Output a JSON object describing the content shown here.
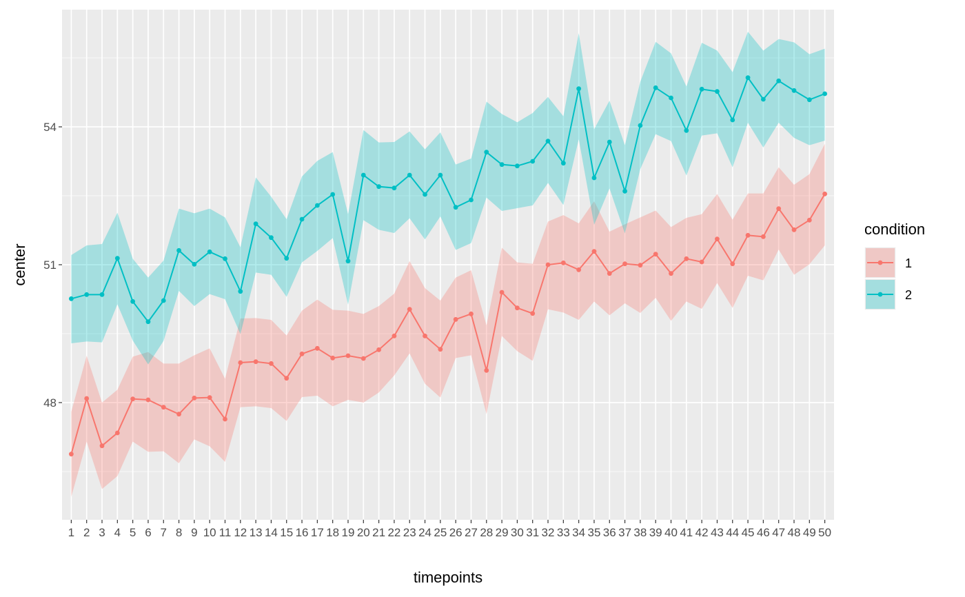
{
  "chart_data": {
    "type": "line",
    "title": "",
    "xlabel": "timepoints",
    "ylabel": "center",
    "x": [
      1,
      2,
      3,
      4,
      5,
      6,
      7,
      8,
      9,
      10,
      11,
      12,
      13,
      14,
      15,
      16,
      17,
      18,
      19,
      20,
      21,
      22,
      23,
      24,
      25,
      26,
      27,
      28,
      29,
      30,
      31,
      32,
      33,
      34,
      35,
      36,
      37,
      38,
      39,
      40,
      41,
      42,
      43,
      44,
      45,
      46,
      47,
      48,
      49,
      50
    ],
    "x_tick_labels": [
      "1",
      "2",
      "3",
      "4",
      "5",
      "6",
      "7",
      "8",
      "9",
      "10",
      "11",
      "12",
      "13",
      "14",
      "15",
      "16",
      "17",
      "18",
      "19",
      "20",
      "21",
      "22",
      "23",
      "24",
      "25",
      "26",
      "27",
      "28",
      "29",
      "30",
      "31",
      "32",
      "33",
      "34",
      "35",
      "36",
      "37",
      "38",
      "39",
      "40",
      "41",
      "42",
      "43",
      "44",
      "45",
      "46",
      "47",
      "48",
      "49",
      "50"
    ],
    "ylim": [
      45.45,
      56.55
    ],
    "y_ticks": [
      48,
      51,
      54
    ],
    "y_tick_labels": [
      "48",
      "51",
      "54"
    ],
    "grid": true,
    "legend": {
      "title": "condition",
      "position": "right"
    },
    "series": [
      {
        "name": "1",
        "color": "#F8766D",
        "fill": "#F8766D",
        "values": [
          46.88,
          48.09,
          47.06,
          47.34,
          48.08,
          48.06,
          47.9,
          47.75,
          48.1,
          48.11,
          47.64,
          48.87,
          48.89,
          48.85,
          48.53,
          49.06,
          49.18,
          48.97,
          49.02,
          48.96,
          49.15,
          49.45,
          50.03,
          49.45,
          49.16,
          49.81,
          49.93,
          48.7,
          50.4,
          50.06,
          49.94,
          51.0,
          51.04,
          50.89,
          51.29,
          50.81,
          51.02,
          50.99,
          51.23,
          50.81,
          51.13,
          51.06,
          51.56,
          51.02,
          51.64,
          51.61,
          52.22,
          51.76,
          51.97,
          52.54
        ],
        "lower": [
          45.95,
          47.15,
          46.12,
          46.4,
          47.15,
          46.93,
          46.94,
          46.68,
          47.2,
          47.05,
          46.71,
          47.9,
          47.92,
          47.88,
          47.6,
          48.12,
          48.15,
          47.92,
          48.06,
          48.0,
          48.22,
          48.59,
          49.07,
          48.41,
          48.11,
          48.97,
          49.03,
          47.75,
          49.45,
          49.12,
          48.91,
          50.03,
          49.96,
          49.8,
          50.2,
          49.9,
          50.16,
          49.95,
          50.28,
          49.78,
          50.2,
          50.04,
          50.6,
          50.06,
          50.76,
          50.66,
          51.33,
          50.78,
          51.01,
          51.42
        ],
        "upper": [
          47.8,
          49.02,
          48.0,
          48.28,
          49.0,
          49.1,
          48.85,
          48.85,
          49.03,
          49.18,
          48.52,
          49.83,
          49.84,
          49.8,
          49.46,
          50.0,
          50.24,
          50.02,
          50.0,
          49.93,
          50.1,
          50.37,
          51.08,
          50.49,
          50.22,
          50.72,
          50.88,
          49.68,
          51.37,
          51.05,
          51.02,
          51.94,
          52.08,
          51.9,
          52.38,
          51.72,
          51.88,
          52.03,
          52.18,
          51.82,
          52.02,
          52.1,
          52.54,
          51.98,
          52.55,
          52.55,
          53.12,
          52.74,
          52.97,
          53.63
        ]
      },
      {
        "name": "2",
        "color": "#00BFC4",
        "fill": "#00BFC4",
        "values": [
          50.26,
          50.35,
          50.35,
          51.14,
          50.2,
          49.76,
          50.22,
          51.31,
          51.01,
          51.28,
          51.13,
          50.42,
          51.89,
          51.59,
          51.14,
          51.99,
          52.29,
          52.53,
          51.08,
          52.95,
          52.7,
          52.67,
          52.95,
          52.53,
          52.95,
          52.25,
          52.41,
          53.45,
          53.18,
          53.15,
          53.25,
          53.69,
          53.21,
          54.83,
          52.89,
          53.67,
          52.6,
          54.03,
          54.85,
          54.63,
          53.92,
          54.82,
          54.77,
          54.15,
          55.07,
          54.6,
          55.0,
          54.79,
          54.59,
          54.72
        ],
        "lower": [
          49.29,
          49.33,
          49.31,
          50.14,
          49.35,
          48.83,
          49.34,
          50.43,
          50.1,
          50.36,
          50.25,
          49.49,
          50.83,
          50.78,
          50.3,
          51.05,
          51.3,
          51.58,
          50.13,
          51.97,
          51.76,
          51.69,
          52.01,
          51.55,
          52.05,
          51.32,
          51.47,
          52.46,
          52.17,
          52.23,
          52.29,
          52.78,
          52.3,
          53.73,
          51.87,
          52.66,
          51.68,
          53.08,
          53.84,
          53.69,
          52.94,
          53.81,
          53.86,
          53.12,
          54.09,
          53.55,
          54.09,
          53.76,
          53.6,
          53.7
        ],
        "upper": [
          51.21,
          51.42,
          51.45,
          52.13,
          51.13,
          50.72,
          51.09,
          52.22,
          52.12,
          52.22,
          52.03,
          51.38,
          52.9,
          52.48,
          51.99,
          52.92,
          53.26,
          53.45,
          52.1,
          53.93,
          53.66,
          53.67,
          53.9,
          53.51,
          53.88,
          53.18,
          53.31,
          54.55,
          54.28,
          54.1,
          54.3,
          54.65,
          54.23,
          56.04,
          53.95,
          54.57,
          53.6,
          54.98,
          55.85,
          55.6,
          54.88,
          55.83,
          55.66,
          55.19,
          56.07,
          55.66,
          55.91,
          55.84,
          55.58,
          55.7
        ]
      }
    ]
  }
}
